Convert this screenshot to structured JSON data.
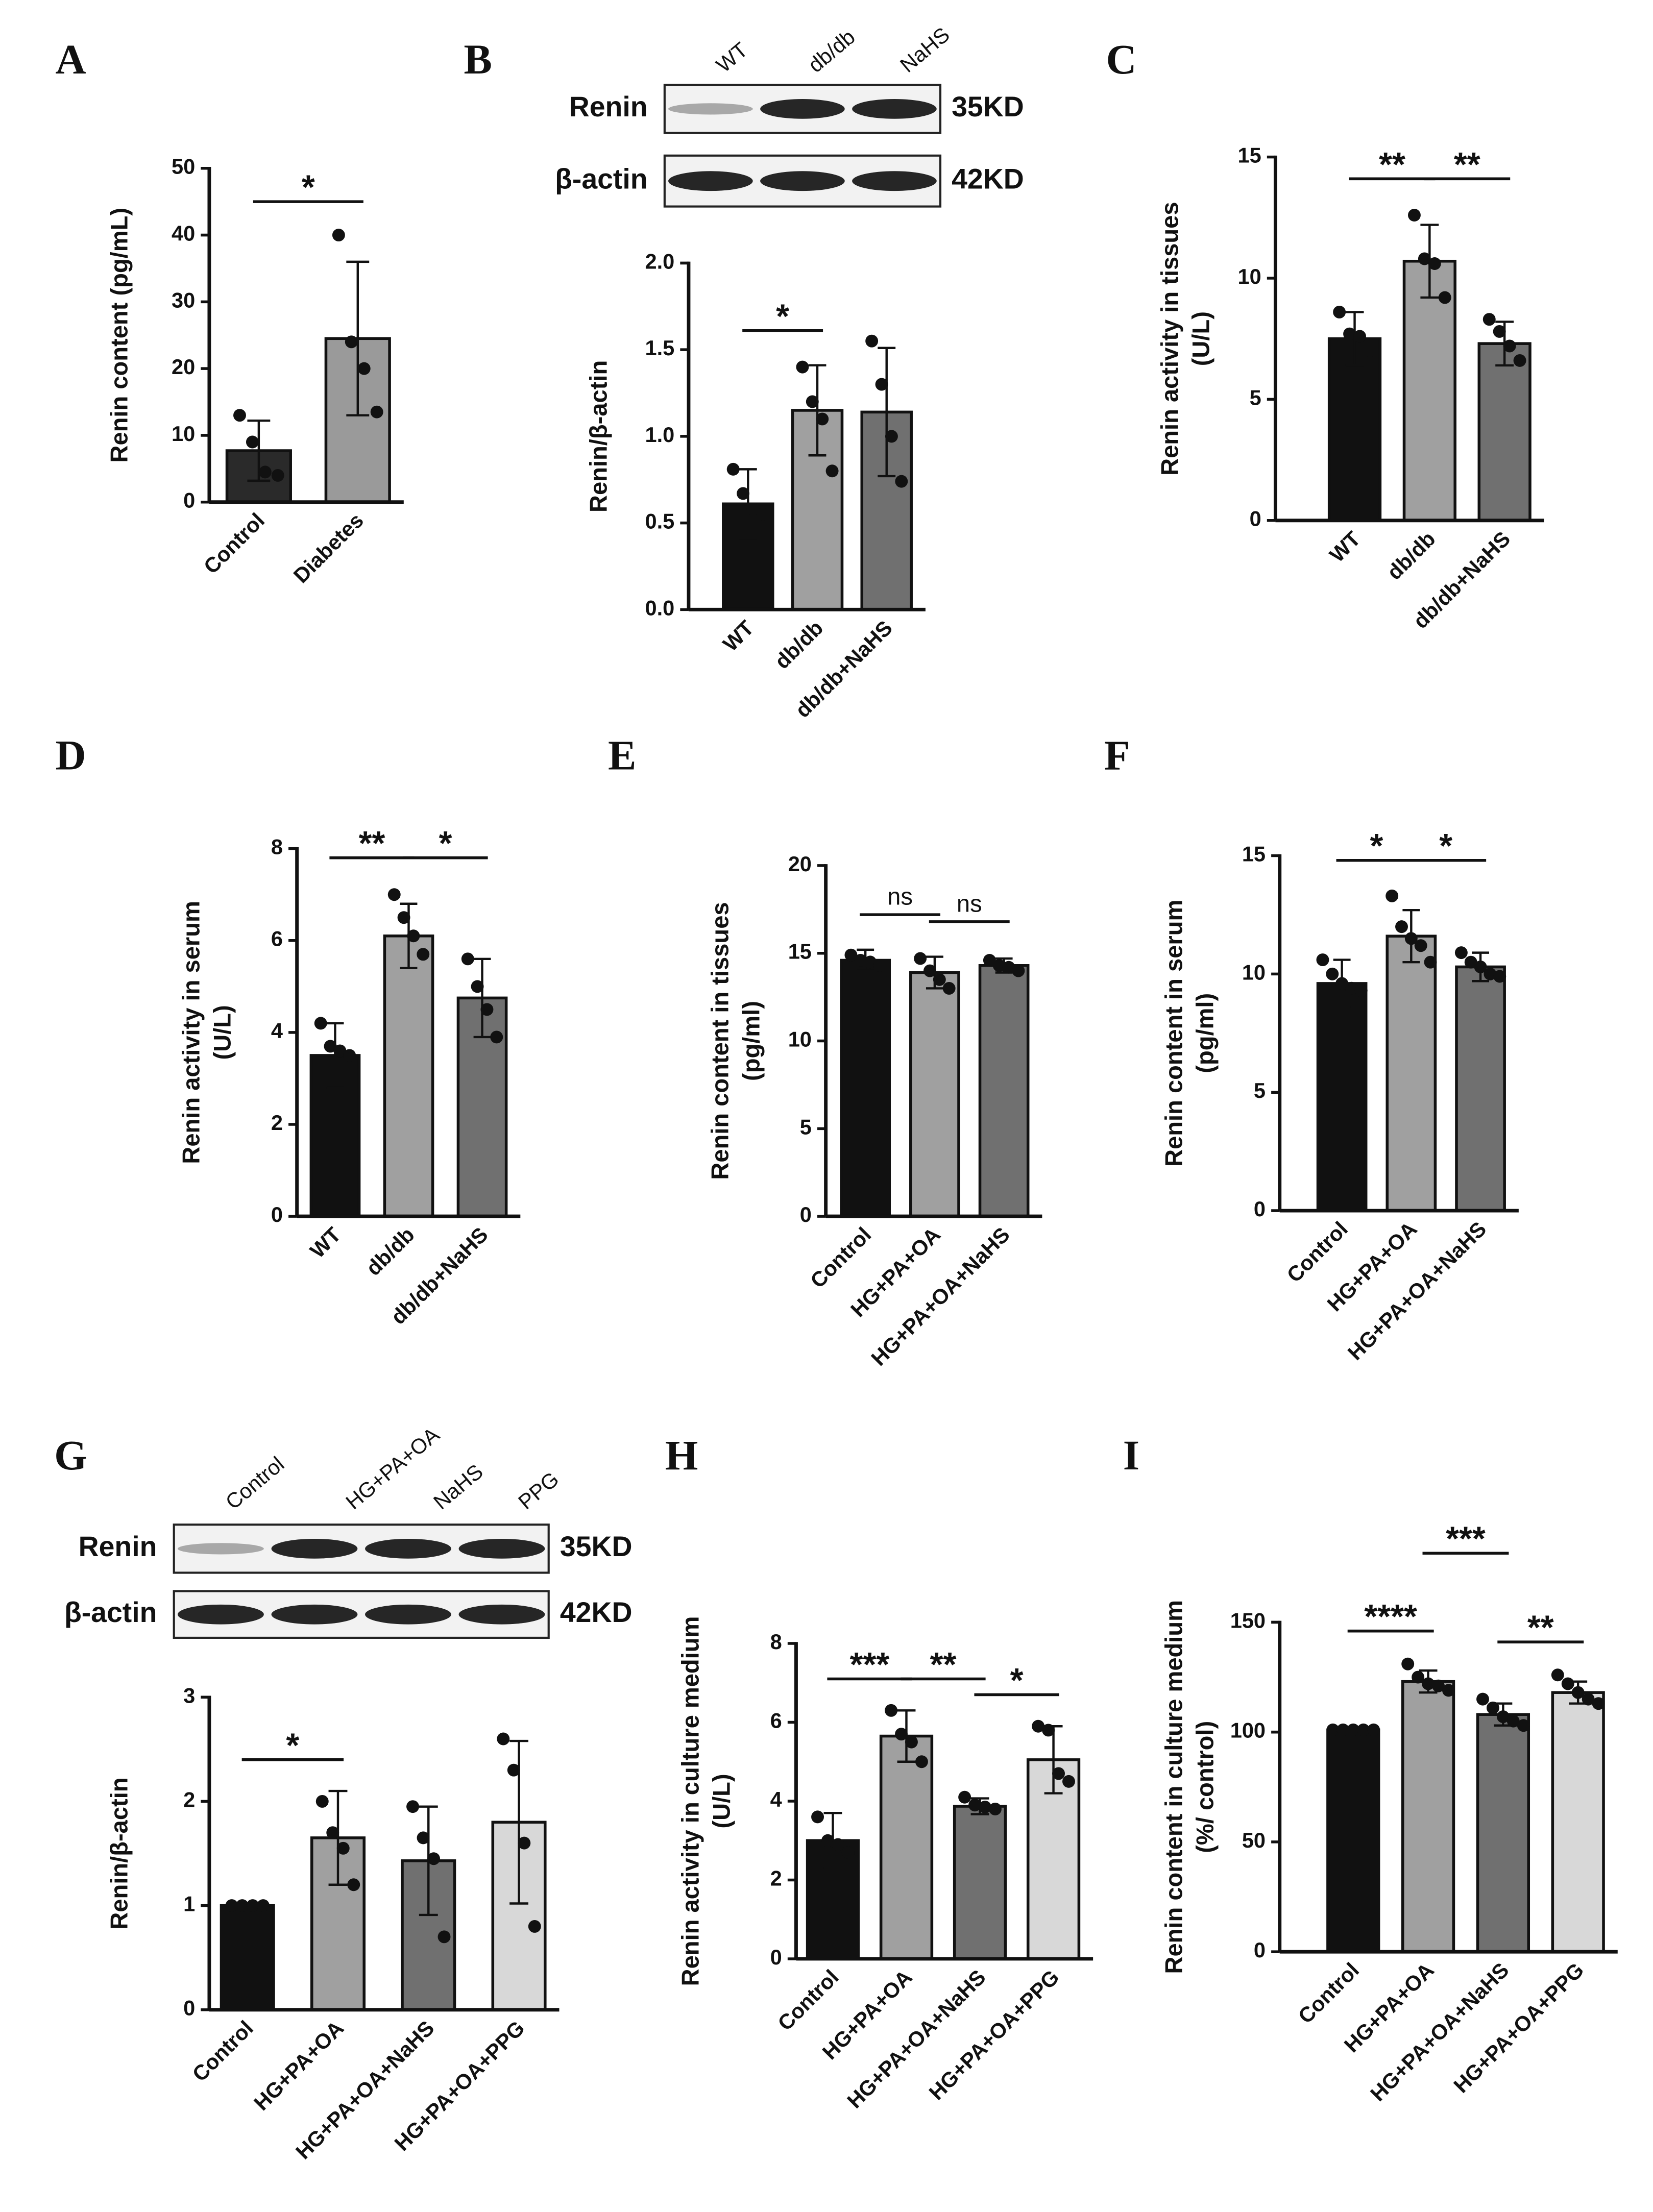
{
  "blots": [
    {
      "panel": "B",
      "lanes": [
        "WT",
        "db/db",
        "NaHS"
      ],
      "rows": [
        {
          "name": "Renin",
          "size": "35KD"
        },
        {
          "name": "β-actin",
          "size": "42KD"
        }
      ]
    },
    {
      "panel": "G",
      "lanes": [
        "Control",
        "HG+PA+OA",
        "NaHS",
        "PPG"
      ],
      "rows": [
        {
          "name": "Renin",
          "size": "35KD"
        },
        {
          "name": "β-actin",
          "size": "42KD"
        }
      ]
    }
  ],
  "chart_data": [
    {
      "type": "bar",
      "panel": "A",
      "ylabel": [
        "Renin content (pg/mL)"
      ],
      "categories": [
        "Control",
        "Diabetes"
      ],
      "values": [
        7.7,
        24.5
      ],
      "errors": [
        4.5,
        11.5
      ],
      "points": [
        [
          13,
          9,
          4.5,
          4
        ],
        [
          40,
          24,
          20,
          13.5
        ]
      ],
      "colors": [
        "#2a2a2a",
        "#9a9a9a"
      ],
      "ylim": [
        0,
        50
      ],
      "yticks": [
        0,
        10,
        20,
        30,
        40,
        50
      ],
      "significance": [
        {
          "from": 0,
          "to": 1,
          "label": "*"
        }
      ]
    },
    {
      "type": "bar",
      "panel": "B",
      "ylabel": [
        "Renin/β-actin"
      ],
      "categories": [
        "WT",
        "db/db",
        "db/db+NaHS"
      ],
      "values": [
        0.61,
        1.15,
        1.14
      ],
      "errors": [
        0.2,
        0.26,
        0.37
      ],
      "points": [
        [
          0.81,
          0.67,
          0.58,
          0.55
        ],
        [
          1.4,
          1.2,
          1.1,
          0.8
        ],
        [
          1.55,
          1.3,
          1.0,
          0.74
        ]
      ],
      "colors": [
        "#111111",
        "#a0a0a0",
        "#707070"
      ],
      "ylim": [
        0,
        2
      ],
      "yticks": [
        {
          "value": 0,
          "label": "0.0"
        },
        0.5,
        {
          "value": 1,
          "label": "1.0"
        },
        1.5,
        {
          "value": 2,
          "label": "2.0"
        }
      ],
      "significance": [
        {
          "from": 0,
          "to": 1,
          "label": "*"
        }
      ]
    },
    {
      "type": "bar",
      "panel": "C",
      "ylabel": [
        "Renin activity in tissues",
        "(U/L)"
      ],
      "categories": [
        "WT",
        "db/db",
        "db/db+NaHS"
      ],
      "values": [
        7.5,
        10.7,
        7.3
      ],
      "errors": [
        1.1,
        1.5,
        0.9
      ],
      "points": [
        [
          8.6,
          7.7,
          7.6,
          7.0
        ],
        [
          12.6,
          10.8,
          10.6,
          9.2
        ],
        [
          8.3,
          7.8,
          7.2,
          6.6
        ]
      ],
      "colors": [
        "#111111",
        "#a0a0a0",
        "#707070"
      ],
      "ylim": [
        0,
        15
      ],
      "yticks": [
        0,
        5,
        10,
        15
      ],
      "significance": [
        {
          "from": 0,
          "to": 1,
          "label": "**"
        },
        {
          "from": 1,
          "to": 2,
          "label": "**"
        }
      ]
    },
    {
      "type": "bar",
      "panel": "D",
      "ylabel": [
        "Renin activity in serum",
        "(U/L)"
      ],
      "categories": [
        "WT",
        "db/db",
        "db/db+NaHS"
      ],
      "values": [
        3.5,
        6.1,
        4.75
      ],
      "errors": [
        0.7,
        0.7,
        0.85
      ],
      "points": [
        [
          4.2,
          3.7,
          3.6,
          3.5
        ],
        [
          7.0,
          6.5,
          6.1,
          5.7
        ],
        [
          5.6,
          5.0,
          4.5,
          3.9
        ]
      ],
      "colors": [
        "#111111",
        "#a0a0a0",
        "#707070"
      ],
      "ylim": [
        0,
        8
      ],
      "yticks": [
        0,
        2,
        4,
        6,
        8
      ],
      "significance": [
        {
          "from": 0,
          "to": 1,
          "label": "**"
        },
        {
          "from": 1,
          "to": 2,
          "label": "*"
        }
      ]
    },
    {
      "type": "bar",
      "panel": "E",
      "ylabel": [
        "Renin content in tissues",
        "(pg/ml)"
      ],
      "categories": [
        "Control",
        "HG+PA+OA",
        "HG+PA+OA+NaHS"
      ],
      "values": [
        14.6,
        13.9,
        14.3
      ],
      "errors": [
        0.6,
        0.9,
        0.4
      ],
      "points": [
        [
          14.9,
          14.6,
          14.5,
          14.3
        ],
        [
          14.7,
          14.0,
          13.5,
          13.0
        ],
        [
          14.6,
          14.3,
          14.2,
          14.0
        ]
      ],
      "colors": [
        "#111111",
        "#a0a0a0",
        "#707070"
      ],
      "ylim": [
        0,
        20
      ],
      "yticks": [
        0,
        5,
        10,
        15,
        20
      ],
      "significance": [
        {
          "from": 0,
          "to": 1,
          "label": "ns"
        },
        {
          "from": 1,
          "to": 2,
          "label": "ns"
        }
      ]
    },
    {
      "type": "bar",
      "panel": "F",
      "ylabel": [
        "Renin content in serum",
        "(pg/ml)"
      ],
      "categories": [
        "Control",
        "HG+PA+OA",
        "HG+PA+OA+NaHS"
      ],
      "values": [
        9.6,
        11.6,
        10.3
      ],
      "errors": [
        1.0,
        1.1,
        0.6
      ],
      "points": [
        [
          10.6,
          10.0,
          9.6,
          9.4,
          9.3
        ],
        [
          13.3,
          12.0,
          11.5,
          11.2,
          10.5
        ],
        [
          10.9,
          10.5,
          10.3,
          10.0,
          9.9
        ]
      ],
      "colors": [
        "#111111",
        "#a0a0a0",
        "#707070"
      ],
      "ylim": [
        0,
        15
      ],
      "yticks": [
        0,
        5,
        10,
        15
      ],
      "significance": [
        {
          "from": 0,
          "to": 1,
          "label": "*"
        },
        {
          "from": 1,
          "to": 2,
          "label": "*"
        }
      ]
    },
    {
      "type": "bar",
      "panel": "G",
      "ylabel": [
        "Renin/β-actin"
      ],
      "categories": [
        "Control",
        "HG+PA+OA",
        "HG+PA+OA+NaHS",
        "HG+PA+OA+PPG"
      ],
      "values": [
        1.0,
        1.65,
        1.43,
        1.8
      ],
      "errors": [
        0,
        0.45,
        0.52,
        0.78
      ],
      "points": [
        [
          1,
          1,
          1,
          1
        ],
        [
          2.0,
          1.7,
          1.55,
          1.2
        ],
        [
          1.95,
          1.65,
          1.45,
          0.7
        ],
        [
          2.6,
          2.3,
          1.6,
          0.8
        ]
      ],
      "colors": [
        "#111111",
        "#a0a0a0",
        "#707070",
        "#d8d8d8"
      ],
      "ylim": [
        0,
        3
      ],
      "yticks": [
        0,
        1,
        2,
        3
      ],
      "significance": [
        {
          "from": 0,
          "to": 1,
          "label": "*"
        }
      ]
    },
    {
      "type": "bar",
      "panel": "H",
      "ylabel": [
        "Renin activity in culture medium",
        "(U/L)"
      ],
      "categories": [
        "Control",
        "HG+PA+OA",
        "HG+PA+OA+NaHS",
        "HG+PA+OA+PPG"
      ],
      "values": [
        3.0,
        5.65,
        3.87,
        5.05
      ],
      "errors": [
        0.7,
        0.65,
        0.2,
        0.85
      ],
      "points": [
        [
          3.6,
          3.0,
          2.9,
          2.7
        ],
        [
          6.3,
          5.7,
          5.5,
          5.0
        ],
        [
          4.1,
          3.9,
          3.85,
          3.8
        ],
        [
          5.9,
          5.8,
          4.7,
          4.5
        ]
      ],
      "colors": [
        "#111111",
        "#a0a0a0",
        "#707070",
        "#d8d8d8"
      ],
      "ylim": [
        0,
        8
      ],
      "yticks": [
        0,
        2,
        4,
        6,
        8
      ],
      "significance": [
        {
          "from": 0,
          "to": 1,
          "label": "***"
        },
        {
          "from": 1,
          "to": 2,
          "label": "**"
        },
        {
          "from": 2,
          "to": 3,
          "label": "*"
        }
      ]
    },
    {
      "type": "bar",
      "panel": "I",
      "ylabel": [
        "Renin content in culture medium",
        "(%/ control)"
      ],
      "categories": [
        "Control",
        "HG+PA+OA",
        "HG+PA+OA+NaHS",
        "HG+PA+OA+PPG"
      ],
      "values": [
        101,
        123,
        108,
        118
      ],
      "errors": [
        0,
        5,
        5,
        5
      ],
      "points": [
        [
          101,
          101,
          101,
          101,
          101
        ],
        [
          131,
          125,
          122,
          121,
          119
        ],
        [
          115,
          111,
          107,
          105,
          103
        ],
        [
          126,
          122,
          118,
          115,
          113
        ]
      ],
      "colors": [
        "#111111",
        "#a0a0a0",
        "#707070",
        "#d8d8d8"
      ],
      "ylim": [
        0,
        150
      ],
      "yticks": [
        0,
        50,
        100,
        150
      ],
      "significance": [
        {
          "from": 0,
          "to": 1,
          "label": "****"
        },
        {
          "from": 2,
          "to": 3,
          "label": "**"
        },
        {
          "from": 1,
          "to": 2,
          "label": "***"
        }
      ]
    }
  ]
}
